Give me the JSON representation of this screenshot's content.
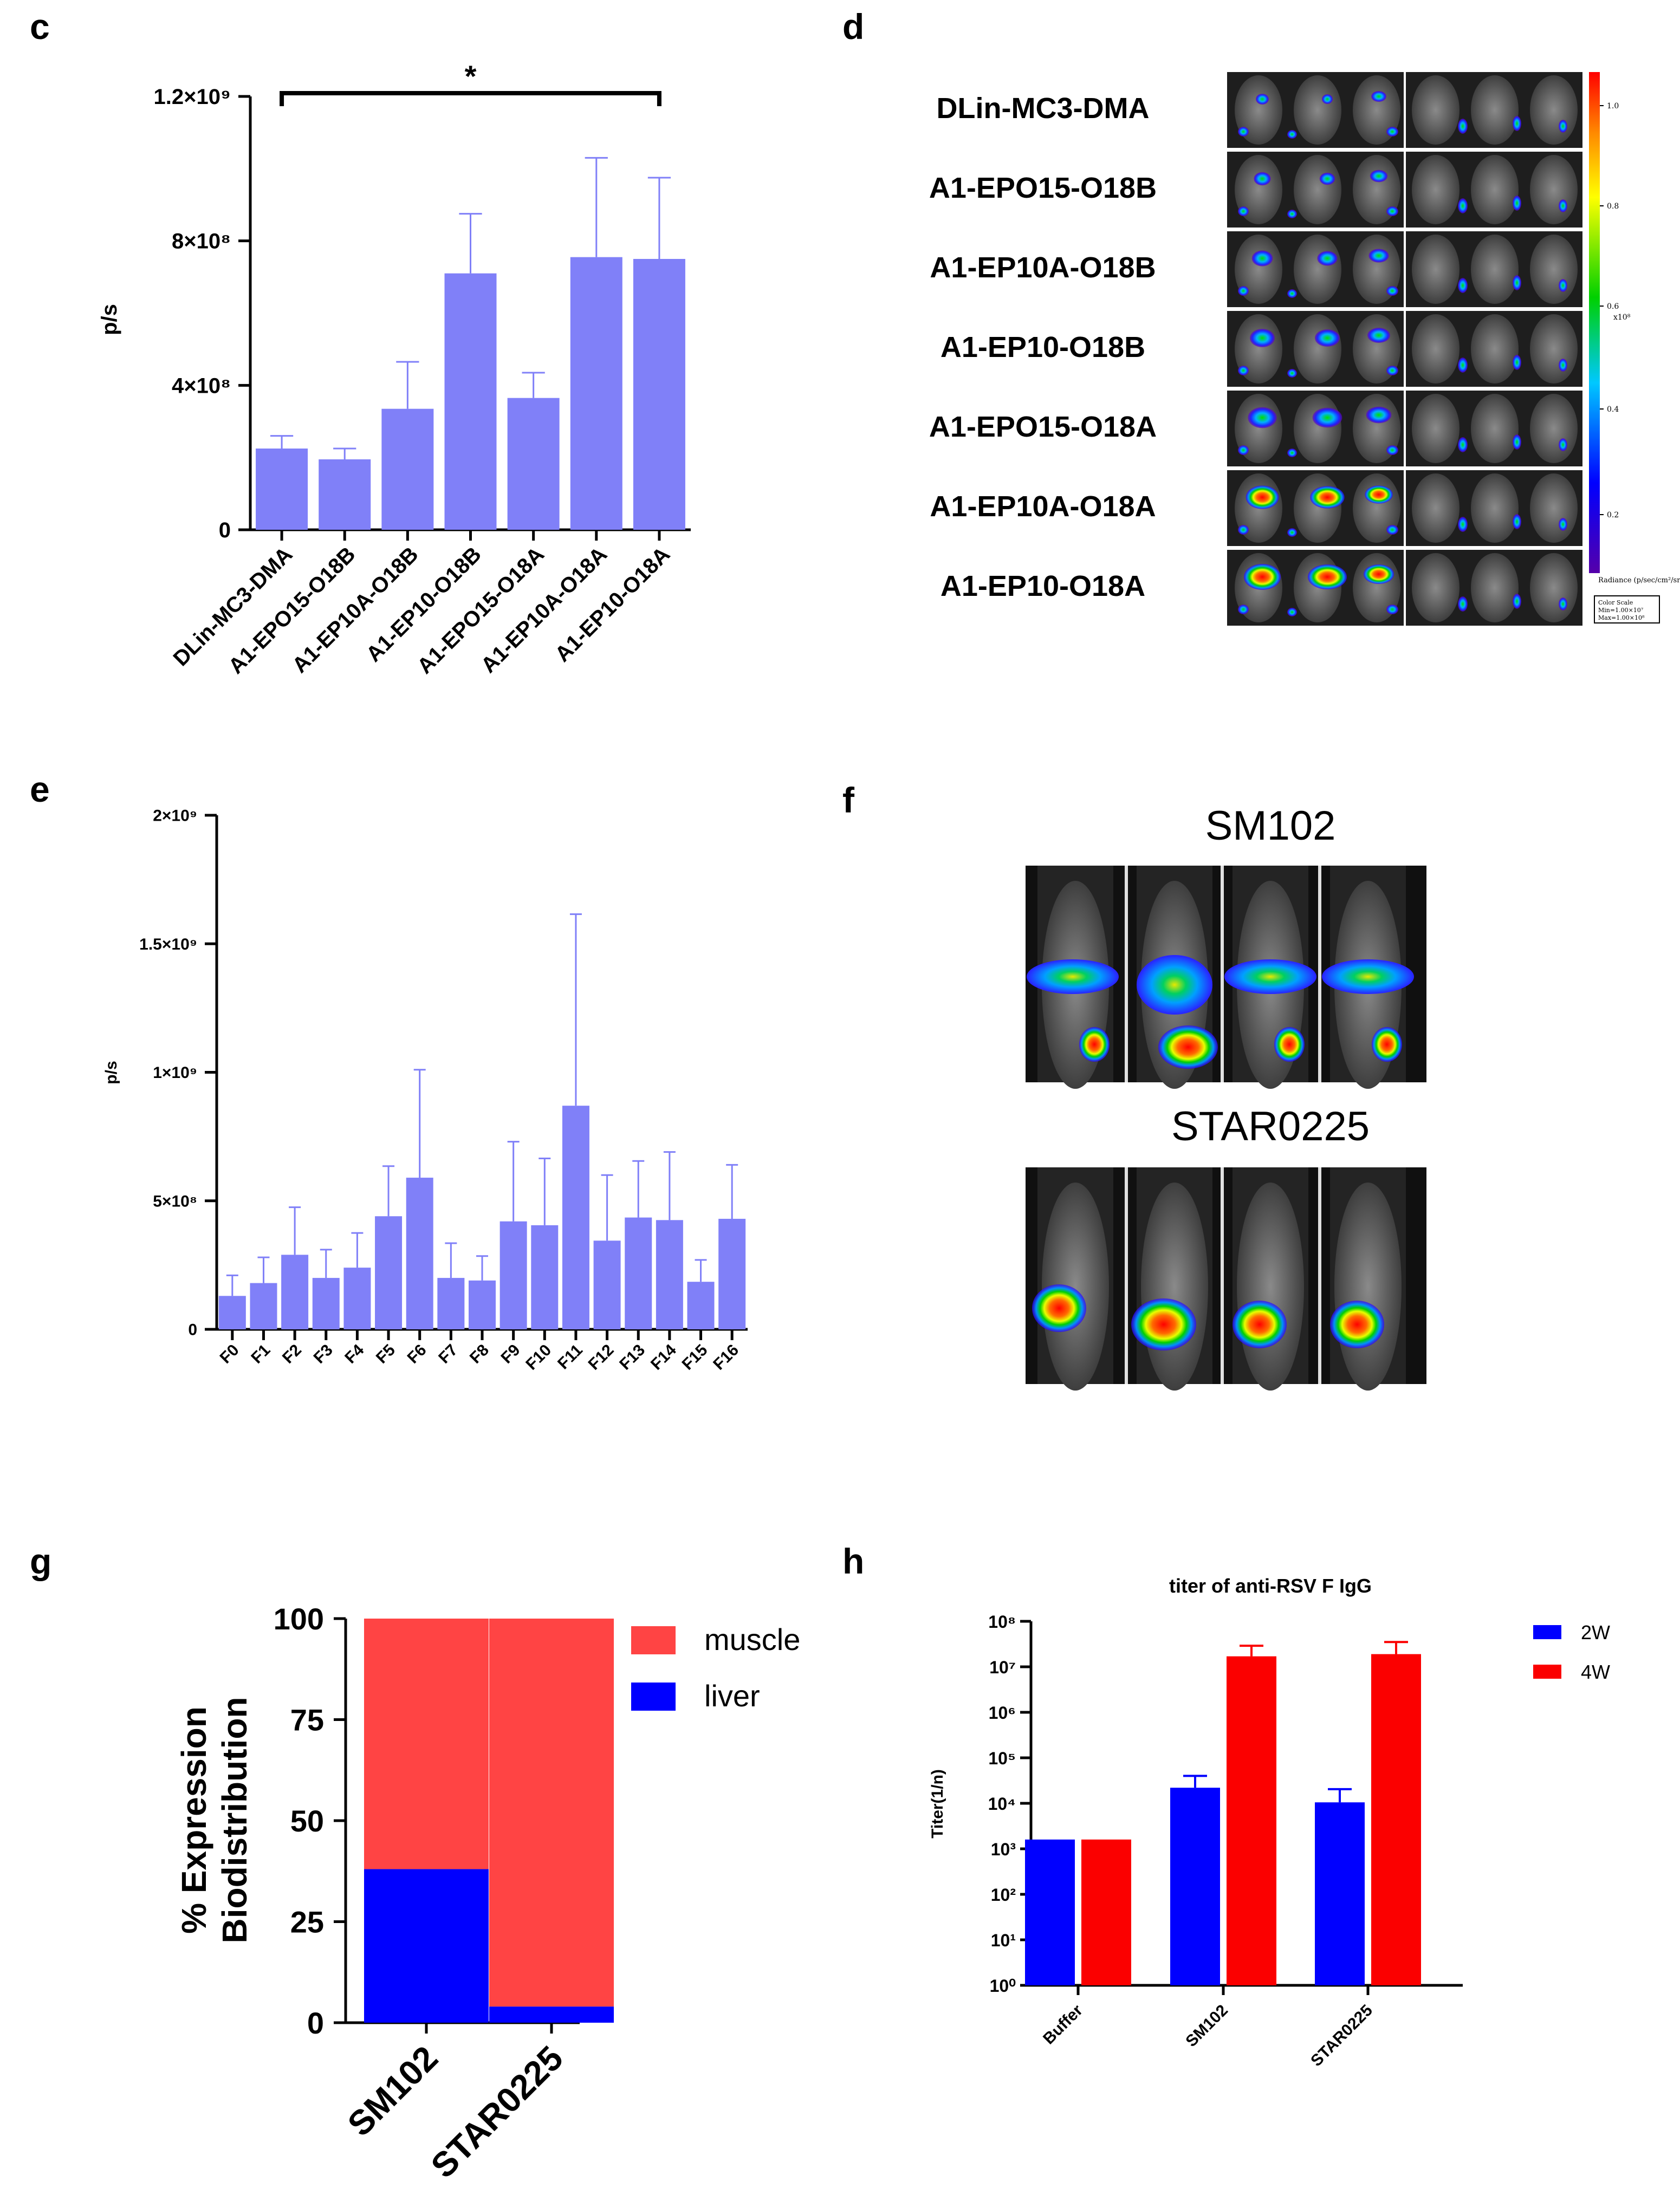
{
  "panel_labels": {
    "c": "c",
    "d": "d",
    "e": "e",
    "f": "f",
    "g": "g",
    "h": "h"
  },
  "colors": {
    "bar_purple": "#8080f8",
    "blue": "#0000ff",
    "red": "#fb0000",
    "red_light": "#ff4444"
  },
  "panel_d": {
    "labels": [
      "DLin-MC3-DMA",
      "A1-EPO15-O18B",
      "A1-EP10A-O18B",
      "A1-EP10-O18B",
      "A1-EPO15-O18A",
      "A1-EP10A-O18A",
      "A1-EP10-O18A"
    ],
    "colorbar_ticks": [
      "1.0",
      "0.8",
      "0.6",
      "0.4",
      "0.2"
    ],
    "colorbar_unit": "x10⁸",
    "colorbar_label": "Radiance (p/sec/cm²/sr)",
    "color_scale_text": "Color Scale",
    "color_scale_min": "Min=1.00×10⁷",
    "color_scale_max": "Max=1.00×10⁸"
  },
  "panel_f": {
    "titles": [
      "SM102",
      "STAR0225"
    ]
  },
  "chart_data": [
    {
      "id": "c",
      "type": "bar",
      "ylabel": "p/s",
      "categories": [
        "DLin-MC3-DMA",
        "A1-EPO15-O18B",
        "A1-EP10A-O18B",
        "A1-EP10-O18B",
        "A1-EPO15-O18A",
        "A1-EP10A-O18A",
        "A1-EP10-O18A"
      ],
      "values": [
        225000000,
        195000000,
        335000000,
        710000000,
        365000000,
        755000000,
        750000000
      ],
      "errors": [
        35000000,
        30000000,
        130000000,
        165000000,
        70000000,
        275000000,
        225000000
      ],
      "ylim": [
        0,
        1200000000
      ],
      "yticks": [
        0,
        400000000,
        800000000,
        1200000000
      ],
      "ytick_labels": [
        "0",
        "4×10⁸",
        "8×10⁸",
        "1.2×10⁹"
      ],
      "significance": {
        "from": "DLin-MC3-DMA",
        "to": "A1-EP10-O18A",
        "label": "*"
      }
    },
    {
      "id": "e",
      "type": "bar",
      "ylabel": "p/s",
      "categories": [
        "F0",
        "F1",
        "F2",
        "F3",
        "F4",
        "F5",
        "F6",
        "F7",
        "F8",
        "F9",
        "F10",
        "F11",
        "F12",
        "F13",
        "F14",
        "F15",
        "F16"
      ],
      "values": [
        130000000,
        180000000,
        290000000,
        200000000,
        240000000,
        440000000,
        590000000,
        200000000,
        190000000,
        420000000,
        405000000,
        870000000,
        345000000,
        435000000,
        425000000,
        185000000,
        430000000
      ],
      "errors": [
        80000000,
        100000000,
        185000000,
        110000000,
        135000000,
        195000000,
        420000000,
        135000000,
        95000000,
        310000000,
        260000000,
        745000000,
        255000000,
        220000000,
        265000000,
        85000000,
        210000000
      ],
      "ylim": [
        0,
        2000000000
      ],
      "yticks": [
        0,
        500000000,
        1000000000,
        1500000000,
        2000000000
      ],
      "ytick_labels": [
        "0",
        "5×10⁸",
        "1×10⁹",
        "1.5×10⁹",
        "2×10⁹"
      ]
    },
    {
      "id": "g",
      "type": "stacked_bar",
      "ylabel_lines": [
        "% Expression",
        "Biodistribution"
      ],
      "categories": [
        "SM102",
        "STAR0225"
      ],
      "series": [
        {
          "name": "liver",
          "values": [
            38,
            4
          ]
        },
        {
          "name": "muscle",
          "values": [
            62,
            96
          ]
        }
      ],
      "legend": [
        "muscle",
        "liver"
      ],
      "ylim": [
        0,
        100
      ],
      "yticks": [
        0,
        25,
        50,
        75,
        100
      ],
      "ytick_labels": [
        "0",
        "25",
        "50",
        "75",
        "100"
      ]
    },
    {
      "id": "h",
      "type": "bar",
      "scale": "log",
      "title": "titer of anti-RSV F IgG",
      "ylabel": "Titer(1/n)",
      "categories": [
        "Buffer",
        "SM102",
        "STAR0225"
      ],
      "series": [
        {
          "name": "2W",
          "values": [
            1600,
            22000,
            10500
          ],
          "errors": [
            0,
            18000,
            10000
          ]
        },
        {
          "name": "4W",
          "values": [
            1600,
            17000000,
            19000000
          ],
          "errors": [
            0,
            12000000,
            16000000
          ]
        }
      ],
      "ylim": [
        1,
        100000000
      ],
      "ytick_labels": [
        "10⁰",
        "10¹",
        "10²",
        "10³",
        "10⁴",
        "10⁵",
        "10⁶",
        "10⁷",
        "10⁸"
      ]
    }
  ]
}
